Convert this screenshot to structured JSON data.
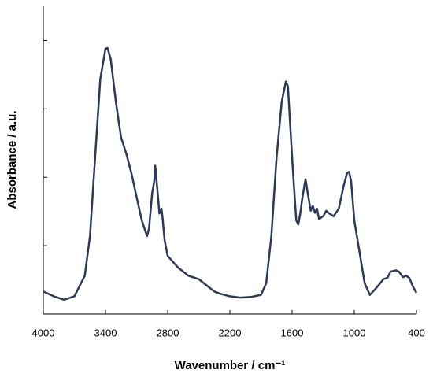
{
  "chart_data": {
    "type": "line",
    "x_label": "Wavenumber / cm⁻¹",
    "y_label": "Absorbance / a.u.",
    "color": "#2b3a5a",
    "x": [
      4000,
      3900,
      3800,
      3700,
      3600,
      3550,
      3500,
      3450,
      3400,
      3380,
      3350,
      3300,
      3250,
      3200,
      3150,
      3100,
      3050,
      3000,
      2980,
      2950,
      2930,
      2920,
      2900,
      2880,
      2860,
      2850,
      2830,
      2800,
      2700,
      2600,
      2500,
      2400,
      2350,
      2300,
      2200,
      2100,
      2000,
      1900,
      1850,
      1800,
      1750,
      1700,
      1660,
      1640,
      1600,
      1580,
      1560,
      1540,
      1520,
      1500,
      1480,
      1470,
      1450,
      1420,
      1400,
      1380,
      1360,
      1340,
      1300,
      1270,
      1250,
      1200,
      1150,
      1100,
      1070,
      1050,
      1030,
      1000,
      950,
      900,
      850,
      800,
      750,
      720,
      680,
      650,
      600,
      570,
      530,
      500,
      470,
      430,
      400
    ],
    "values": [
      0.33,
      0.26,
      0.21,
      0.26,
      0.56,
      1.14,
      2.29,
      3.44,
      3.88,
      3.89,
      3.73,
      3.1,
      2.58,
      2.35,
      2.06,
      1.71,
      1.37,
      1.14,
      1.25,
      1.77,
      1.94,
      2.17,
      1.83,
      1.47,
      1.54,
      1.42,
      1.08,
      0.85,
      0.68,
      0.56,
      0.51,
      0.39,
      0.33,
      0.3,
      0.26,
      0.24,
      0.25,
      0.28,
      0.45,
      1.14,
      2.29,
      3.1,
      3.4,
      3.33,
      2.29,
      1.83,
      1.37,
      1.31,
      1.48,
      1.71,
      1.89,
      1.97,
      1.77,
      1.51,
      1.58,
      1.48,
      1.54,
      1.39,
      1.43,
      1.51,
      1.48,
      1.43,
      1.54,
      1.89,
      2.06,
      2.08,
      1.94,
      1.37,
      0.91,
      0.45,
      0.28,
      0.36,
      0.45,
      0.51,
      0.53,
      0.62,
      0.64,
      0.62,
      0.54,
      0.56,
      0.53,
      0.39,
      0.31
    ],
    "xlim": [
      4000,
      400
    ],
    "xticks": [
      4000,
      3400,
      2800,
      2200,
      1600,
      1000,
      400
    ],
    "ylim": [
      0,
      4.5
    ],
    "yticks": [
      1,
      2,
      3,
      4
    ]
  }
}
